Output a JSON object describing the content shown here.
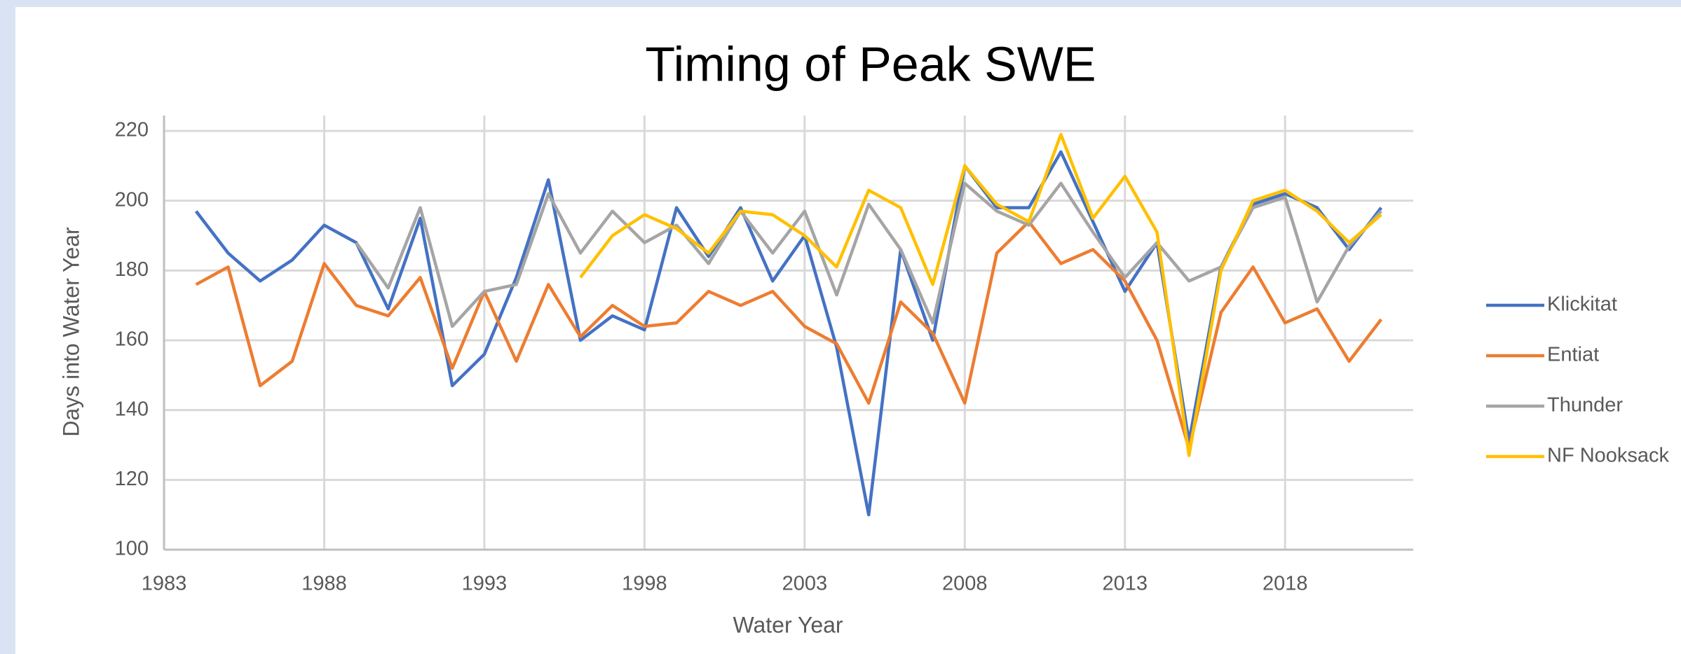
{
  "chart_data": {
    "type": "line",
    "title": "Timing of Peak SWE",
    "x_label": "Water Year",
    "y_label": "Days into Water Year",
    "x": [
      1984,
      1985,
      1986,
      1987,
      1988,
      1989,
      1990,
      1991,
      1992,
      1993,
      1994,
      1995,
      1996,
      1997,
      1998,
      1999,
      2000,
      2001,
      2002,
      2003,
      2004,
      2005,
      2006,
      2007,
      2008,
      2009,
      2010,
      2011,
      2012,
      2013,
      2014,
      2015,
      2016,
      2017,
      2018,
      2019,
      2020,
      2021
    ],
    "series": [
      {
        "name": "Klickitat",
        "color": "#4472c4",
        "values": [
          197,
          185,
          177,
          183,
          193,
          188,
          169,
          195,
          147,
          156,
          178,
          206,
          160,
          167,
          163,
          198,
          184,
          198,
          177,
          190,
          158,
          110,
          186,
          160,
          210,
          198,
          198,
          214,
          194,
          174,
          188,
          131,
          181,
          199,
          202,
          198,
          186,
          198
        ]
      },
      {
        "name": "Entiat",
        "color": "#ed7d31",
        "values": [
          176,
          181,
          147,
          154,
          182,
          170,
          167,
          178,
          152,
          174,
          154,
          176,
          161,
          170,
          164,
          165,
          174,
          170,
          174,
          164,
          159,
          142,
          171,
          162,
          142,
          185,
          194,
          182,
          186,
          177,
          160,
          129,
          168,
          181,
          165,
          169,
          154,
          166
        ]
      },
      {
        "name": "Thunder",
        "color": "#a5a5a5",
        "values": [
          null,
          null,
          null,
          null,
          null,
          188,
          175,
          198,
          164,
          174,
          176,
          202,
          185,
          197,
          188,
          193,
          182,
          197,
          185,
          197,
          173,
          199,
          186,
          165,
          205,
          197,
          193,
          205,
          191,
          178,
          188,
          177,
          181,
          198,
          201,
          171,
          187,
          197
        ]
      },
      {
        "name": "NF Nooksack",
        "color": "#ffc000",
        "values": [
          null,
          null,
          null,
          null,
          null,
          null,
          null,
          null,
          null,
          null,
          null,
          null,
          178,
          190,
          196,
          192,
          185,
          197,
          196,
          190,
          181,
          203,
          198,
          176,
          210,
          199,
          194,
          219,
          195,
          207,
          191,
          127,
          180,
          200,
          203,
          197,
          188,
          196
        ]
      }
    ],
    "xlim": [
      1983,
      2022
    ],
    "xticks": [
      1983,
      1988,
      1993,
      1998,
      2003,
      2008,
      2013,
      2018
    ],
    "ylim": [
      100,
      220
    ],
    "yticks": [
      100,
      120,
      140,
      160,
      180,
      200,
      220
    ],
    "grid": true,
    "legend": "right"
  }
}
